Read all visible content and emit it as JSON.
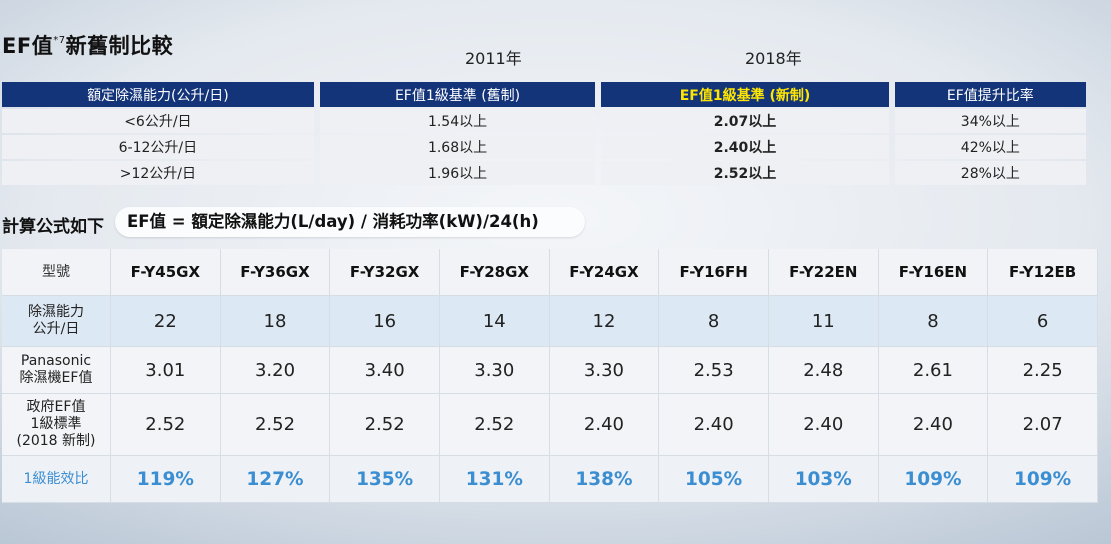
{
  "title": {
    "main": "EF值",
    "sup": "*7",
    "rest": "新舊制比較"
  },
  "years": {
    "y2011": "2011年",
    "y2018": "2018年"
  },
  "ef_table": {
    "headers": [
      "額定除濕能力(公升/日)",
      "EF值1級基準 (舊制)",
      "EF值1級基準 (新制)",
      "EF值提升比率"
    ],
    "rows": [
      [
        "<6公升/日",
        "1.54以上",
        "2.07以上",
        "34%以上"
      ],
      [
        "6-12公升/日",
        "1.68以上",
        "2.40以上",
        "42%以上"
      ],
      [
        ">12公升/日",
        "1.96以上",
        "2.52以上",
        "28%以上"
      ]
    ]
  },
  "formula": {
    "label": "計算公式如下",
    "text": "EF值 = 額定除濕能力(L/day)  / 消耗功率(kW)/24(h)"
  },
  "models": {
    "row_labels": {
      "model": "型號",
      "capacity": [
        "除濕能力",
        "公升/日"
      ],
      "ef": [
        "Panasonic",
        "除濕機EF值"
      ],
      "standard": [
        "政府EF值",
        "1級標準",
        "(2018 新制)"
      ],
      "efficiency": "1級能效比"
    },
    "names": [
      "F-Y45GX",
      "F-Y36GX",
      "F-Y32GX",
      "F-Y28GX",
      "F-Y24GX",
      "F-Y16FH",
      "F-Y22EN",
      "F-Y16EN",
      "F-Y12EB"
    ],
    "capacity": [
      "22",
      "18",
      "16",
      "14",
      "12",
      "8",
      "11",
      "8",
      "6"
    ],
    "ef": [
      "3.01",
      "3.20",
      "3.40",
      "3.30",
      "3.30",
      "2.53",
      "2.48",
      "2.61",
      "2.25"
    ],
    "standard": [
      "2.52",
      "2.52",
      "2.52",
      "2.52",
      "2.40",
      "2.40",
      "2.40",
      "2.40",
      "2.07"
    ],
    "efficiency": [
      "119%",
      "127%",
      "135%",
      "131%",
      "138%",
      "105%",
      "103%",
      "109%",
      "109%"
    ]
  },
  "colors": {
    "header_navy": "#14347a",
    "highlight_yellow": "#ffe600",
    "efficiency_blue": "#3b8ed1",
    "capacity_row": "#dce8f3"
  }
}
